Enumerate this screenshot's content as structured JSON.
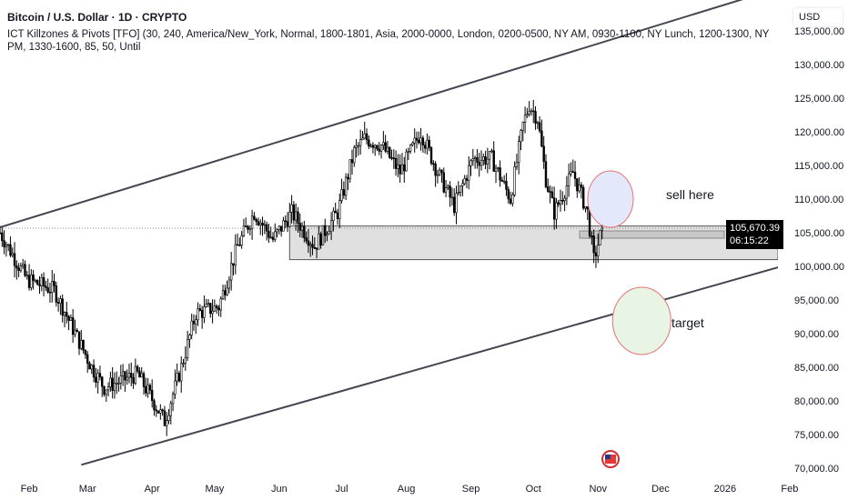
{
  "header": {
    "title": "Bitcoin / U.S. Dollar · 1D · CRYPTO",
    "indicator": "ICT Killzones & Pivots [TFO] (30, 240, America/New_York, Normal, 1800-1801, Asia, 2000-0000, London, 0200-0500, NY AM, 0930-1100, NY Lunch, 1200-1300, NY PM, 1330-1600, 85, 50, Until"
  },
  "currency": "USD",
  "price_tag": {
    "price": "105,670.39",
    "countdown": "06:15:22"
  },
  "annotations": {
    "sell": "sell here",
    "target": "target"
  },
  "colors": {
    "candle": "#000000",
    "channel": "#434651",
    "zone": "#e0e0e0",
    "sell_fill": "#e3e8fb",
    "target_fill": "#e8f5e4",
    "circle_stroke": "#e57373"
  },
  "chart_data": {
    "type": "candlestick",
    "title": "Bitcoin / U.S. Dollar · 1D",
    "ylim": [
      69000,
      138000
    ],
    "y_ticks": [
      135000,
      130000,
      125000,
      120000,
      115000,
      110000,
      105000,
      100000,
      95000,
      90000,
      85000,
      80000,
      75000,
      70000
    ],
    "y_tick_labels": [
      "135,000.00",
      "130,000.00",
      "125,000.00",
      "120,000.00",
      "115,000.00",
      "110,000.00",
      "105,000.00",
      "100,000.00",
      "95,000.00",
      "90,000.00",
      "85,000.00",
      "80,000.00",
      "75,000.00",
      "70,000.00"
    ],
    "x_ticks": [
      {
        "label": "Feb",
        "day": 14
      },
      {
        "label": "Mar",
        "day": 42
      },
      {
        "label": "Apr",
        "day": 73
      },
      {
        "label": "May",
        "day": 103
      },
      {
        "label": "Jun",
        "day": 134
      },
      {
        "label": "Jul",
        "day": 164
      },
      {
        "label": "Aug",
        "day": 195
      },
      {
        "label": "Sep",
        "day": 226
      },
      {
        "label": "Oct",
        "day": 256
      },
      {
        "label": "Nov",
        "day": 287
      },
      {
        "label": "Dec",
        "day": 317
      },
      {
        "label": "2026",
        "day": 348
      },
      {
        "label": "Feb",
        "day": 379
      }
    ],
    "price_path": [
      [
        0,
        105000
      ],
      [
        13,
        98000
      ],
      [
        26,
        96500
      ],
      [
        44,
        85000
      ],
      [
        50,
        82000
      ],
      [
        66,
        84000
      ],
      [
        79,
        77000
      ],
      [
        87,
        85000
      ],
      [
        94,
        93000
      ],
      [
        105,
        94000
      ],
      [
        114,
        103000
      ],
      [
        122,
        108000
      ],
      [
        131,
        104000
      ],
      [
        140,
        108000
      ],
      [
        151,
        103000
      ],
      [
        162,
        108000
      ],
      [
        170,
        117000
      ],
      [
        175,
        119000
      ],
      [
        183,
        118000
      ],
      [
        192,
        114000
      ],
      [
        202,
        120000
      ],
      [
        210,
        114000
      ],
      [
        218,
        109000
      ],
      [
        227,
        116000
      ],
      [
        236,
        116000
      ],
      [
        245,
        110000
      ],
      [
        251,
        121000
      ],
      [
        254,
        124000
      ],
      [
        258,
        122000
      ],
      [
        262,
        113000
      ],
      [
        266,
        108000
      ],
      [
        275,
        114000
      ],
      [
        282,
        108000
      ],
      [
        285,
        101000
      ],
      [
        289,
        105670
      ]
    ],
    "channel_upper": [
      [
        0,
        105800
      ],
      [
        370,
        141000
      ]
    ],
    "channel_lower": [
      [
        39,
        70500
      ],
      [
        415,
        103500
      ]
    ],
    "zone": {
      "from_day": 139,
      "to_day": 400,
      "top": 106000,
      "bottom": 101000
    },
    "sell_zone": {
      "day": 293,
      "price": 110000
    },
    "target_zone": {
      "day": 308,
      "price": 91900
    }
  }
}
